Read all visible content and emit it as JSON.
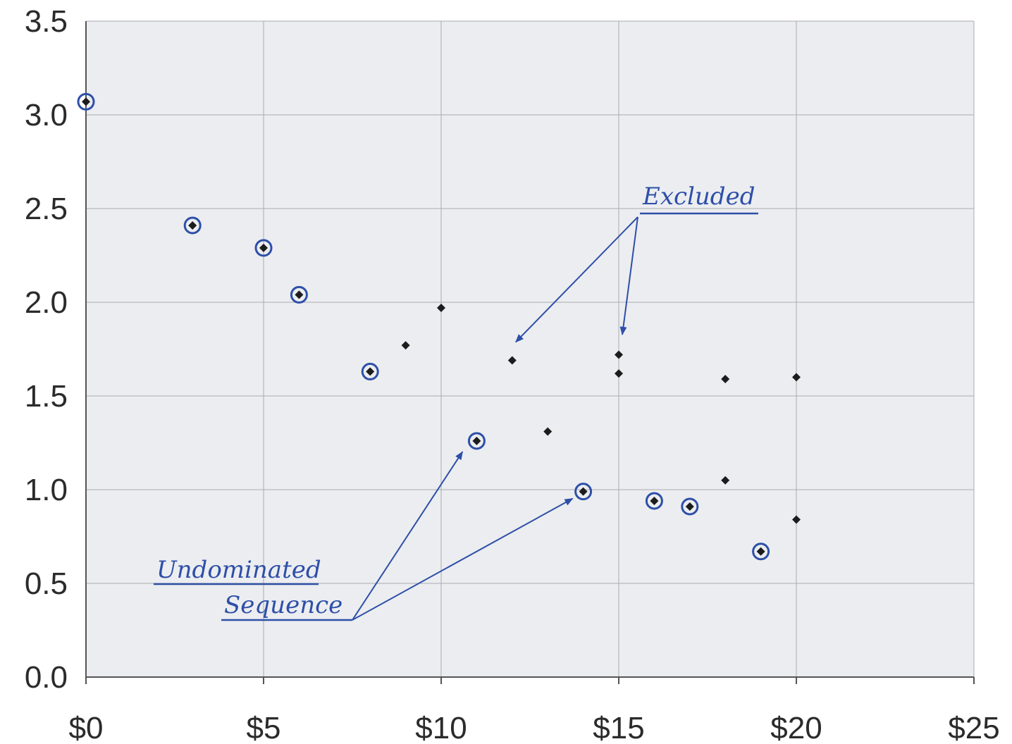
{
  "chart_data": {
    "type": "scatter",
    "title": "",
    "xlabel": "",
    "ylabel": "",
    "xlim": [
      0,
      25
    ],
    "ylim": [
      0,
      3.5
    ],
    "grid": true,
    "x_ticks": [
      {
        "value": 0,
        "label": "$0"
      },
      {
        "value": 5,
        "label": "$5"
      },
      {
        "value": 10,
        "label": "$10"
      },
      {
        "value": 15,
        "label": "$15"
      },
      {
        "value": 20,
        "label": "$20"
      },
      {
        "value": 25,
        "label": "$25"
      }
    ],
    "y_ticks": [
      {
        "value": 0,
        "label": "0.0"
      },
      {
        "value": 0.5,
        "label": "0.5"
      },
      {
        "value": 1,
        "label": "1.0"
      },
      {
        "value": 1.5,
        "label": "1.5"
      },
      {
        "value": 2,
        "label": "2.0"
      },
      {
        "value": 2.5,
        "label": "2.5"
      },
      {
        "value": 3,
        "label": "3.0"
      },
      {
        "value": 3.5,
        "label": "3.5"
      }
    ],
    "points": [
      {
        "x": 0,
        "y": 3.07,
        "circled": true
      },
      {
        "x": 3,
        "y": 2.41,
        "circled": true
      },
      {
        "x": 5,
        "y": 2.29,
        "circled": true
      },
      {
        "x": 6,
        "y": 2.04,
        "circled": true
      },
      {
        "x": 8,
        "y": 1.63,
        "circled": true
      },
      {
        "x": 9,
        "y": 1.77,
        "circled": false
      },
      {
        "x": 10,
        "y": 1.97,
        "circled": false
      },
      {
        "x": 11,
        "y": 1.26,
        "circled": true
      },
      {
        "x": 12,
        "y": 1.69,
        "circled": false
      },
      {
        "x": 13,
        "y": 1.31,
        "circled": false
      },
      {
        "x": 14,
        "y": 0.99,
        "circled": true
      },
      {
        "x": 15,
        "y": 1.72,
        "circled": false
      },
      {
        "x": 15,
        "y": 1.62,
        "circled": false
      },
      {
        "x": 16,
        "y": 0.94,
        "circled": true
      },
      {
        "x": 17,
        "y": 0.91,
        "circled": true
      },
      {
        "x": 18,
        "y": 1.59,
        "circled": false
      },
      {
        "x": 18,
        "y": 1.05,
        "circled": false
      },
      {
        "x": 19,
        "y": 0.67,
        "circled": true
      },
      {
        "x": 20,
        "y": 1.6,
        "circled": false
      },
      {
        "x": 20,
        "y": 0.84,
        "circled": false
      }
    ],
    "annotations": [
      {
        "text": "Excluded",
        "anchor": {
          "x": 15.6,
          "y": 2.45
        },
        "targets": [
          {
            "x": 12.1,
            "y": 1.72
          },
          {
            "x": 15.1,
            "y": 1.76
          }
        ]
      },
      {
        "text": "Undominated",
        "anchor": {
          "x": 7.5,
          "y": 0.3
        },
        "targets": []
      },
      {
        "text": "Sequence",
        "anchor": {
          "x": 7.5,
          "y": 0.3
        },
        "targets": [
          {
            "x": 10.8,
            "y": 1.24
          },
          {
            "x": 13.9,
            "y": 0.99
          }
        ]
      }
    ],
    "colors": {
      "plot_background": "#ecedf0",
      "grid": "#a9abb1",
      "marker": "#1c1c1c",
      "ink": "#2d4fa8"
    }
  }
}
